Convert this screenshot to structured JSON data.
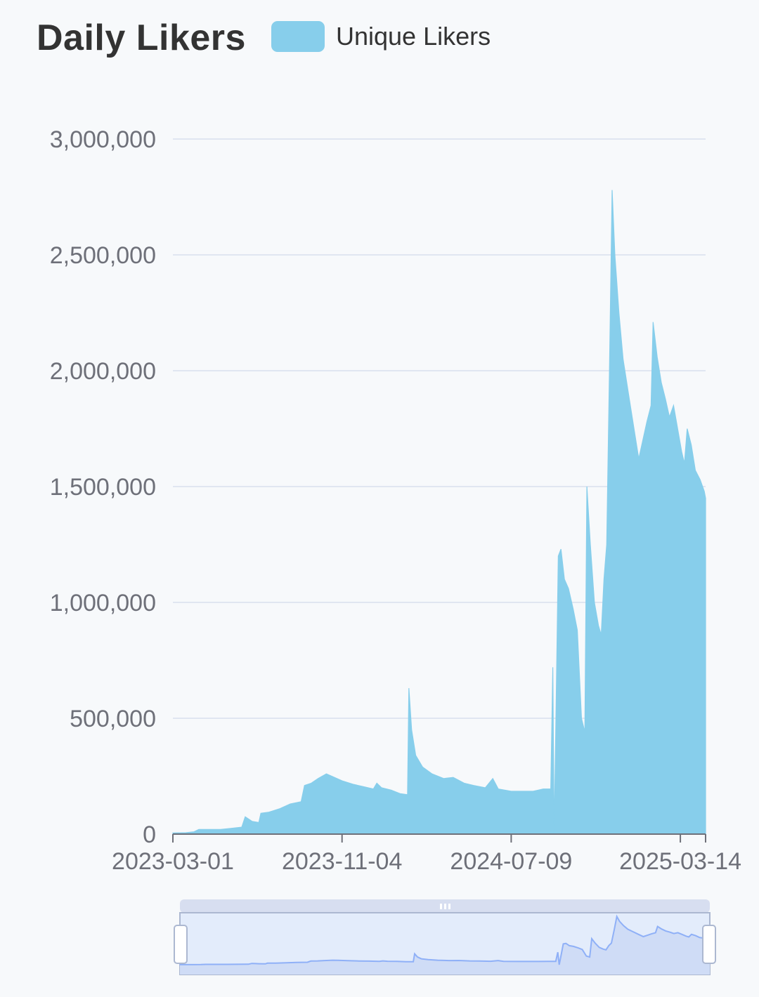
{
  "title": "Daily Likers",
  "legend": {
    "label": "Unique Likers",
    "color": "#87ceeb"
  },
  "chart_data": {
    "type": "area",
    "title": "Daily Likers",
    "xlabel": "",
    "ylabel": "",
    "series": [
      {
        "name": "Unique Likers",
        "color": "#87ceeb",
        "points": [
          [
            "2023-03-01",
            5000
          ],
          [
            "2023-03-20",
            6000
          ],
          [
            "2023-04-01",
            10000
          ],
          [
            "2023-04-08",
            20000
          ],
          [
            "2023-04-25",
            20000
          ],
          [
            "2023-05-10",
            20000
          ],
          [
            "2023-05-25",
            25000
          ],
          [
            "2023-06-10",
            30000
          ],
          [
            "2023-06-15",
            75000
          ],
          [
            "2023-06-20",
            65000
          ],
          [
            "2023-06-25",
            55000
          ],
          [
            "2023-07-05",
            50000
          ],
          [
            "2023-07-08",
            90000
          ],
          [
            "2023-07-20",
            95000
          ],
          [
            "2023-08-05",
            110000
          ],
          [
            "2023-08-20",
            130000
          ],
          [
            "2023-09-05",
            140000
          ],
          [
            "2023-09-10",
            210000
          ],
          [
            "2023-09-20",
            220000
          ],
          [
            "2023-09-30",
            240000
          ],
          [
            "2023-10-12",
            260000
          ],
          [
            "2023-10-20",
            250000
          ],
          [
            "2023-11-04",
            230000
          ],
          [
            "2023-11-20",
            215000
          ],
          [
            "2023-12-05",
            205000
          ],
          [
            "2023-12-20",
            195000
          ],
          [
            "2023-12-25",
            220000
          ],
          [
            "2024-01-01",
            200000
          ],
          [
            "2024-01-15",
            190000
          ],
          [
            "2024-01-28",
            175000
          ],
          [
            "2024-02-08",
            170000
          ],
          [
            "2024-02-10",
            630000
          ],
          [
            "2024-02-14",
            450000
          ],
          [
            "2024-02-20",
            340000
          ],
          [
            "2024-03-01",
            290000
          ],
          [
            "2024-03-15",
            260000
          ],
          [
            "2024-04-01",
            240000
          ],
          [
            "2024-04-15",
            245000
          ],
          [
            "2024-05-01",
            220000
          ],
          [
            "2024-05-15",
            210000
          ],
          [
            "2024-06-01",
            200000
          ],
          [
            "2024-06-12",
            240000
          ],
          [
            "2024-06-20",
            195000
          ],
          [
            "2024-07-09",
            185000
          ],
          [
            "2024-07-25",
            185000
          ],
          [
            "2024-08-10",
            185000
          ],
          [
            "2024-08-25",
            195000
          ],
          [
            "2024-09-05",
            195000
          ],
          [
            "2024-09-08",
            720000
          ],
          [
            "2024-09-10",
            0
          ],
          [
            "2024-09-12",
            380000
          ],
          [
            "2024-09-16",
            1200000
          ],
          [
            "2024-09-20",
            1230000
          ],
          [
            "2024-09-25",
            1100000
          ],
          [
            "2024-10-01",
            1060000
          ],
          [
            "2024-10-08",
            970000
          ],
          [
            "2024-10-14",
            880000
          ],
          [
            "2024-10-20",
            500000
          ],
          [
            "2024-10-25",
            440000
          ],
          [
            "2024-10-28",
            1500000
          ],
          [
            "2024-11-02",
            1250000
          ],
          [
            "2024-11-08",
            1000000
          ],
          [
            "2024-11-14",
            900000
          ],
          [
            "2024-11-18",
            860000
          ],
          [
            "2024-11-22",
            1100000
          ],
          [
            "2024-11-26",
            1250000
          ],
          [
            "2024-11-30",
            2000000
          ],
          [
            "2024-12-04",
            2780000
          ],
          [
            "2024-12-08",
            2500000
          ],
          [
            "2024-12-14",
            2250000
          ],
          [
            "2024-12-20",
            2050000
          ],
          [
            "2024-12-28",
            1900000
          ],
          [
            "2025-01-05",
            1750000
          ],
          [
            "2025-01-12",
            1620000
          ],
          [
            "2025-01-18",
            1700000
          ],
          [
            "2025-01-24",
            1780000
          ],
          [
            "2025-01-30",
            1850000
          ],
          [
            "2025-02-02",
            2210000
          ],
          [
            "2025-02-08",
            2060000
          ],
          [
            "2025-02-14",
            1950000
          ],
          [
            "2025-02-20",
            1880000
          ],
          [
            "2025-02-26",
            1800000
          ],
          [
            "2025-03-04",
            1850000
          ],
          [
            "2025-03-10",
            1750000
          ],
          [
            "2025-03-16",
            1650000
          ],
          [
            "2025-03-20",
            1600000
          ],
          [
            "2025-03-24",
            1750000
          ],
          [
            "2025-03-30",
            1680000
          ],
          [
            "2025-04-05",
            1570000
          ],
          [
            "2025-04-12",
            1530000
          ],
          [
            "2025-04-18",
            1480000
          ],
          [
            "2025-04-20",
            1450000
          ]
        ]
      }
    ],
    "x_ticks": [
      "2023-03-01",
      "2023-11-04",
      "2024-07-09",
      "2025-03-14"
    ],
    "x_range": [
      "2023-03-01",
      "2025-04-20"
    ],
    "y_ticks": [
      0,
      500000,
      1000000,
      1500000,
      2000000,
      2500000,
      3000000
    ],
    "y_tick_labels": [
      "0",
      "500,000",
      "1,000,000",
      "1,500,000",
      "2,000,000",
      "2,500,000",
      "3,000,000"
    ],
    "ylim": [
      0,
      3000000
    ],
    "grid": true,
    "legend_position": "top",
    "has_zoom_slider": true
  },
  "colors": {
    "area": "#87ceeb",
    "grid": "#e0e6f1",
    "axis": "#6e7079",
    "slider_fill": "#e3ecfb",
    "slider_border": "#acb8d1",
    "slider_line": "#8fb0f7"
  }
}
